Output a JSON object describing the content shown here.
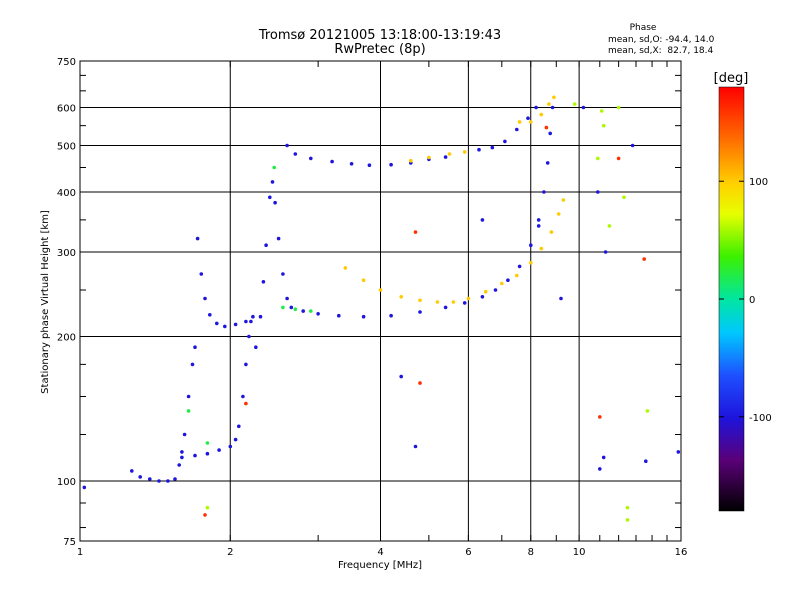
{
  "chart_data": {
    "type": "scatter",
    "title": "Tromsø 20121005 13:18:00-13:19:43",
    "subtitle": "RwPretec (8p)",
    "xlabel": "Frequency [MHz]",
    "ylabel": "Stationary phase Virtual Height [km]",
    "x_scale": "log",
    "y_scale": "log",
    "xlim": [
      1,
      16
    ],
    "ylim": [
      75,
      750
    ],
    "x_ticks": [
      1,
      2,
      4,
      6,
      8,
      10,
      16
    ],
    "x_tick_labels": [
      "1",
      "2",
      "4",
      "6",
      "8",
      "10",
      "16"
    ],
    "y_ticks": [
      75,
      100,
      200,
      300,
      400,
      500,
      600,
      750
    ],
    "y_tick_labels": [
      "75",
      "100",
      "200",
      "300",
      "400",
      "500",
      "600",
      "750"
    ],
    "grid": true,
    "phase_box": {
      "title": "Phase",
      "line_o": "mean, sd,O: -94.4, 14.0",
      "line_x": "mean, sd,X:  82.7, 18.4"
    },
    "colorbar": {
      "label": "[deg]",
      "range": [
        -180,
        180
      ],
      "ticks": [
        100,
        0,
        -100
      ],
      "tick_labels": [
        "100",
        "0",
        "-100"
      ]
    },
    "series": [
      {
        "phase": -100,
        "points": [
          [
            1.27,
            105
          ],
          [
            1.32,
            102
          ],
          [
            1.38,
            101
          ],
          [
            1.44,
            100
          ],
          [
            1.5,
            100
          ],
          [
            1.55,
            101
          ],
          [
            1.58,
            108
          ],
          [
            1.6,
            115
          ],
          [
            1.62,
            125
          ],
          [
            1.65,
            150
          ],
          [
            1.68,
            175
          ],
          [
            1.7,
            190
          ]
        ]
      },
      {
        "phase": -100,
        "points": [
          [
            1.6,
            112
          ],
          [
            1.7,
            113
          ],
          [
            1.8,
            114
          ],
          [
            1.9,
            116
          ],
          [
            2.0,
            118
          ],
          [
            2.05,
            122
          ],
          [
            2.08,
            130
          ],
          [
            2.12,
            150
          ],
          [
            2.15,
            175
          ],
          [
            2.18,
            200
          ],
          [
            2.2,
            215
          ]
        ]
      },
      {
        "phase": -100,
        "points": [
          [
            1.72,
            320
          ],
          [
            1.75,
            270
          ],
          [
            1.78,
            240
          ],
          [
            1.82,
            222
          ],
          [
            1.88,
            213
          ],
          [
            1.95,
            210
          ],
          [
            2.05,
            212
          ],
          [
            2.15,
            215
          ],
          [
            2.22,
            220
          ]
        ]
      },
      {
        "phase": -100,
        "points": [
          [
            2.25,
            190
          ],
          [
            2.3,
            220
          ],
          [
            2.33,
            260
          ],
          [
            2.36,
            310
          ],
          [
            2.4,
            390
          ],
          [
            2.43,
            420
          ],
          [
            2.46,
            380
          ],
          [
            2.5,
            320
          ],
          [
            2.55,
            270
          ],
          [
            2.6,
            240
          ]
        ]
      },
      {
        "phase": -100,
        "points": [
          [
            2.65,
            230
          ],
          [
            2.8,
            226
          ],
          [
            3.0,
            223
          ],
          [
            3.3,
            221
          ],
          [
            3.7,
            220
          ],
          [
            4.2,
            221
          ],
          [
            4.8,
            225
          ],
          [
            5.4,
            230
          ],
          [
            5.9,
            235
          ],
          [
            6.4,
            242
          ],
          [
            6.8,
            250
          ],
          [
            7.2,
            262
          ],
          [
            7.6,
            280
          ],
          [
            8.0,
            310
          ],
          [
            8.3,
            350
          ],
          [
            8.5,
            400
          ],
          [
            8.65,
            460
          ],
          [
            8.75,
            530
          ],
          [
            8.85,
            600
          ]
        ]
      },
      {
        "phase": -100,
        "points": [
          [
            2.6,
            500
          ],
          [
            2.7,
            480
          ],
          [
            2.9,
            470
          ],
          [
            3.2,
            463
          ],
          [
            3.5,
            458
          ],
          [
            3.8,
            455
          ],
          [
            4.2,
            456
          ],
          [
            4.6,
            460
          ],
          [
            5.0,
            468
          ],
          [
            5.4,
            473
          ]
        ]
      },
      {
        "phase": -100,
        "points": [
          [
            6.3,
            490
          ],
          [
            6.7,
            495
          ],
          [
            7.1,
            510
          ],
          [
            7.5,
            540
          ],
          [
            7.9,
            570
          ],
          [
            8.2,
            600
          ]
        ]
      },
      {
        "phase": 100,
        "points": [
          [
            3.4,
            278
          ],
          [
            3.7,
            262
          ],
          [
            4.0,
            250
          ],
          [
            4.4,
            242
          ],
          [
            4.8,
            238
          ],
          [
            5.2,
            236
          ],
          [
            5.6,
            236
          ],
          [
            6.0,
            240
          ],
          [
            6.5,
            248
          ],
          [
            7.0,
            258
          ],
          [
            7.5,
            268
          ],
          [
            8.0,
            285
          ],
          [
            8.4,
            305
          ],
          [
            8.8,
            330
          ],
          [
            9.1,
            360
          ],
          [
            9.3,
            385
          ]
        ]
      },
      {
        "phase": 100,
        "points": [
          [
            4.6,
            465
          ],
          [
            5.0,
            472
          ],
          [
            5.5,
            480
          ],
          [
            5.9,
            485
          ]
        ]
      },
      {
        "phase": 100,
        "points": [
          [
            7.6,
            560
          ],
          [
            8.0,
            560
          ],
          [
            8.4,
            580
          ],
          [
            8.7,
            610
          ],
          [
            8.9,
            630
          ]
        ]
      },
      {
        "phase": 20,
        "points": [
          [
            2.55,
            230
          ],
          [
            2.7,
            228
          ],
          [
            2.9,
            226
          ],
          [
            1.65,
            140
          ],
          [
            1.8,
            120
          ],
          [
            2.45,
            450
          ]
        ]
      },
      {
        "phase": 160,
        "points": [
          [
            1.78,
            85
          ],
          [
            4.7,
            330
          ],
          [
            13.5,
            290
          ],
          [
            12.0,
            470
          ],
          [
            8.6,
            545
          ],
          [
            4.8,
            160
          ],
          [
            2.15,
            145
          ],
          [
            11.0,
            136
          ]
        ]
      },
      {
        "phase": -100,
        "points": [
          [
            10.2,
            600
          ],
          [
            10.9,
            400
          ],
          [
            11.3,
            300
          ],
          [
            11.0,
            106
          ],
          [
            11.2,
            112
          ],
          [
            12.8,
            500
          ],
          [
            13.6,
            110
          ],
          [
            15.8,
            115
          ],
          [
            6.4,
            350
          ],
          [
            8.3,
            340
          ],
          [
            9.2,
            240
          ],
          [
            4.7,
            118
          ],
          [
            4.4,
            165
          ],
          [
            1.02,
            97
          ]
        ]
      },
      {
        "phase": 60,
        "points": [
          [
            9.8,
            610
          ],
          [
            11.1,
            590
          ],
          [
            12.0,
            600
          ],
          [
            11.2,
            550
          ],
          [
            10.9,
            470
          ],
          [
            12.3,
            390
          ],
          [
            11.5,
            340
          ],
          [
            12.5,
            88
          ],
          [
            12.5,
            83
          ],
          [
            13.7,
            140
          ],
          [
            1.8,
            88
          ]
        ]
      }
    ]
  }
}
